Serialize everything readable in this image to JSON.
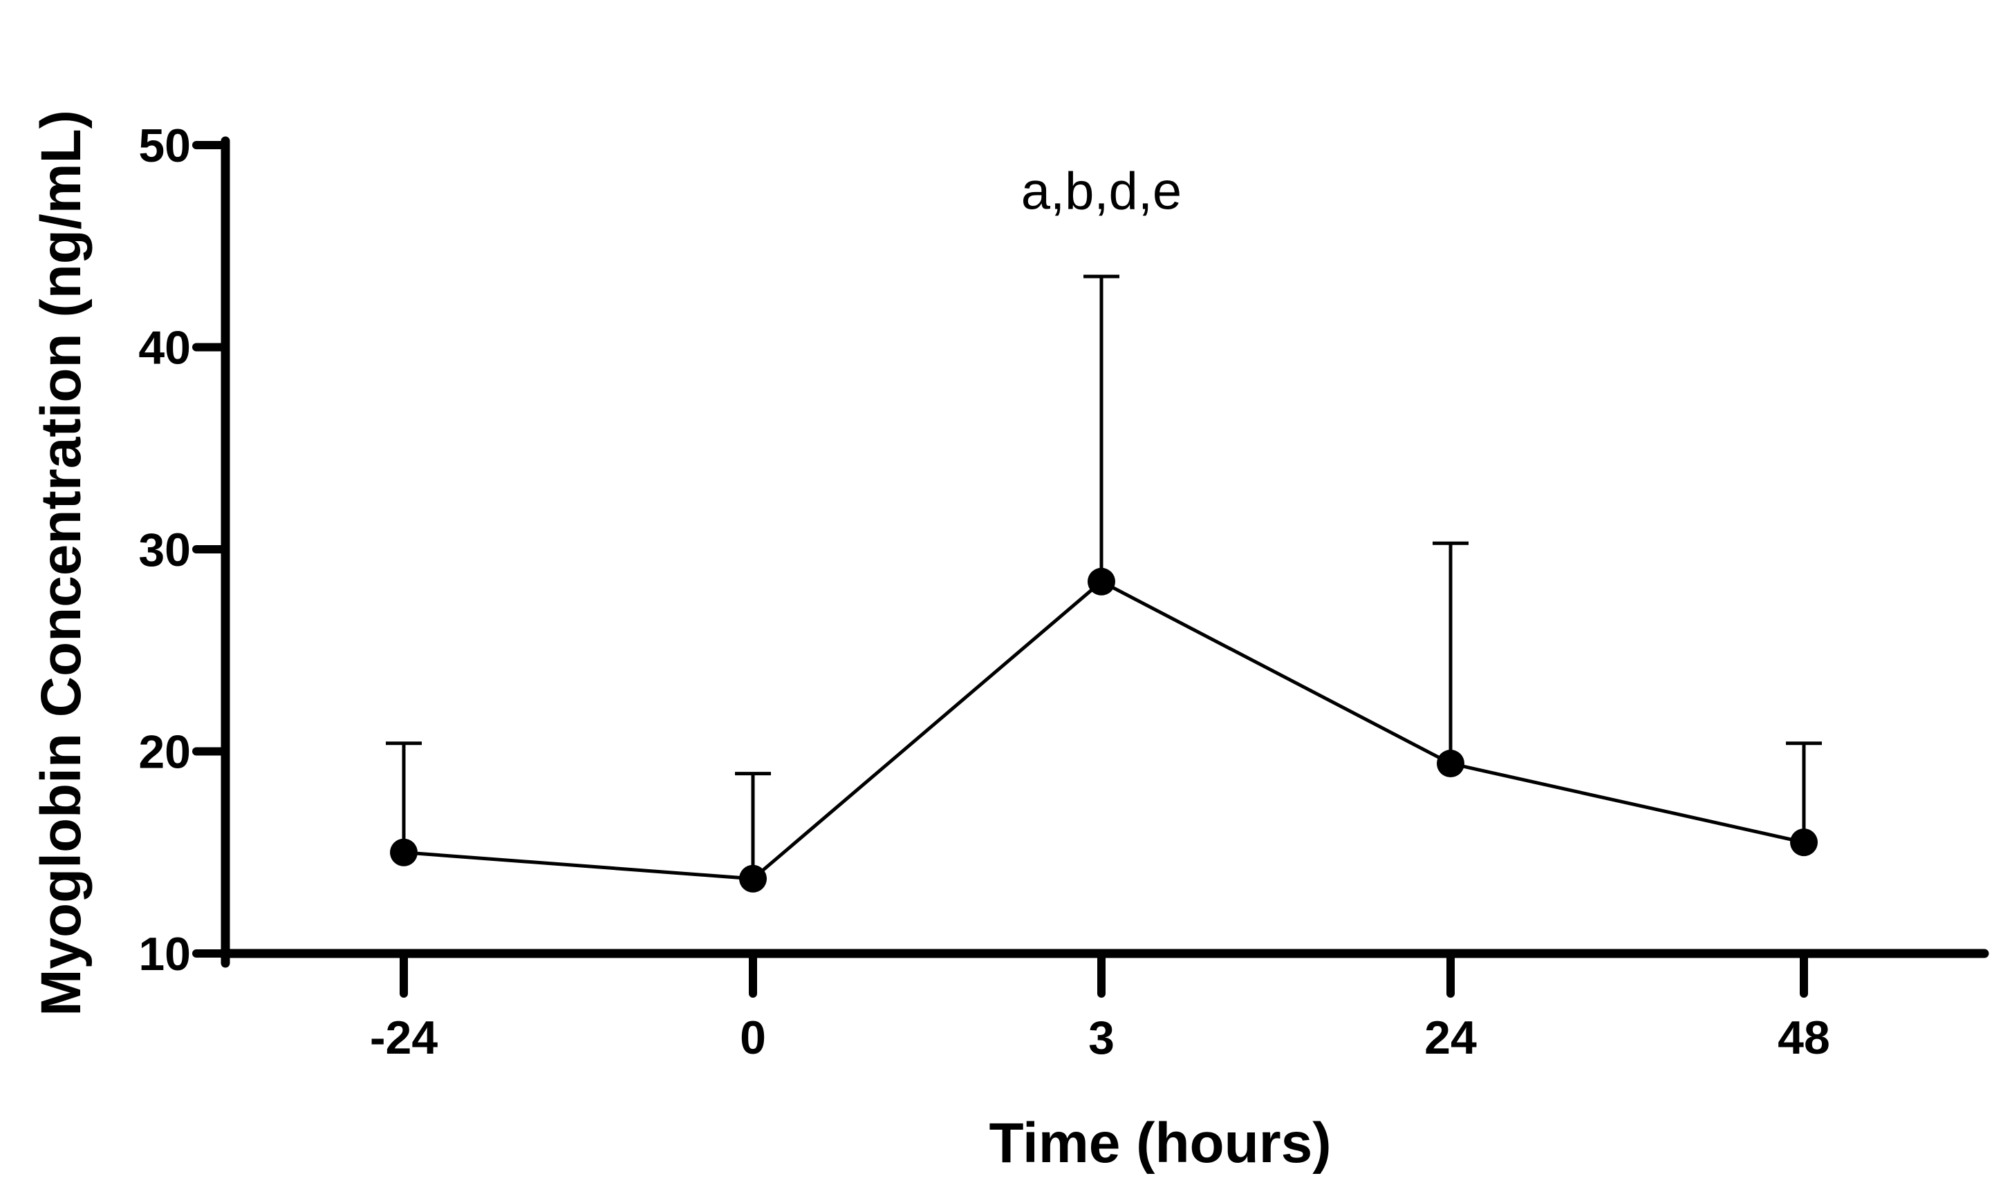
{
  "chart_data": {
    "type": "line",
    "title": "",
    "xlabel": "Time (hours)",
    "ylabel": "Myoglobin Concentration (ng/mL)",
    "categories": [
      "-24",
      "0",
      "3",
      "24",
      "48"
    ],
    "yticks": [
      "10",
      "20",
      "30",
      "40",
      "50"
    ],
    "ylim": [
      10,
      50
    ],
    "grid": false,
    "legend": "none",
    "series": [
      {
        "values": [
          15.0,
          13.7,
          28.4,
          19.4,
          15.5
        ],
        "error_upper": [
          20.4,
          18.9,
          43.5,
          30.3,
          20.4
        ]
      }
    ],
    "annotations": [
      {
        "text": "a,b,d,e",
        "category": "3",
        "y": 47.8
      }
    ],
    "colors": {
      "line": "#000000",
      "marker": "#000000",
      "axis": "#000000"
    }
  }
}
